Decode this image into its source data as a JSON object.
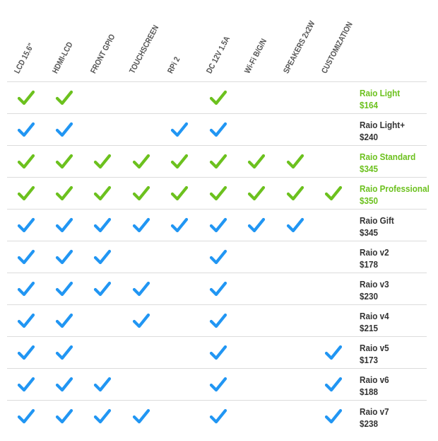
{
  "colors": {
    "featured": "#6cc11e",
    "standard": "#2196f3",
    "header_text": "#555555",
    "text": "#333333",
    "divider": "#dcdcdc"
  },
  "columns": [
    "LCD 15.6\"",
    "HDMI-LCD",
    "FRONT GPIO",
    "TOUCHSCREEN",
    "RPi 2",
    "DC 12V 1.5A",
    "Wi-Fi B/G/N",
    "SPEAKERS 2x2W",
    "CUSTOMIZATION"
  ],
  "rows": [
    {
      "name": "Raio Light",
      "price": "$164",
      "featured": true,
      "features": [
        1,
        1,
        0,
        0,
        0,
        1,
        0,
        0,
        0
      ]
    },
    {
      "name": "Raio Light+",
      "price": "$240",
      "featured": false,
      "features": [
        1,
        1,
        0,
        0,
        1,
        1,
        0,
        0,
        0
      ]
    },
    {
      "name": "Raio Standard",
      "price": "$345",
      "featured": true,
      "features": [
        1,
        1,
        1,
        1,
        1,
        1,
        1,
        1,
        0
      ]
    },
    {
      "name": "Raio Professional",
      "price": "$350",
      "featured": true,
      "features": [
        1,
        1,
        1,
        1,
        1,
        1,
        1,
        1,
        1
      ]
    },
    {
      "name": "Raio Gift",
      "price": "$345",
      "featured": false,
      "features": [
        1,
        1,
        1,
        1,
        1,
        1,
        1,
        1,
        0
      ]
    },
    {
      "name": "Raio v2",
      "price": "$178",
      "featured": false,
      "features": [
        1,
        1,
        1,
        0,
        0,
        1,
        0,
        0,
        0
      ]
    },
    {
      "name": "Raio v3",
      "price": "$230",
      "featured": false,
      "features": [
        1,
        1,
        1,
        1,
        0,
        1,
        0,
        0,
        0
      ]
    },
    {
      "name": "Raio v4",
      "price": "$215",
      "featured": false,
      "features": [
        1,
        1,
        0,
        1,
        0,
        1,
        0,
        0,
        0
      ]
    },
    {
      "name": "Raio v5",
      "price": "$173",
      "featured": false,
      "features": [
        1,
        1,
        0,
        0,
        0,
        1,
        0,
        0,
        1
      ]
    },
    {
      "name": "Raio v6",
      "price": "$188",
      "featured": false,
      "features": [
        1,
        1,
        1,
        0,
        0,
        1,
        0,
        0,
        1
      ]
    },
    {
      "name": "Raio v7",
      "price": "$238",
      "featured": false,
      "features": [
        1,
        1,
        1,
        1,
        0,
        1,
        0,
        0,
        1
      ]
    }
  ]
}
